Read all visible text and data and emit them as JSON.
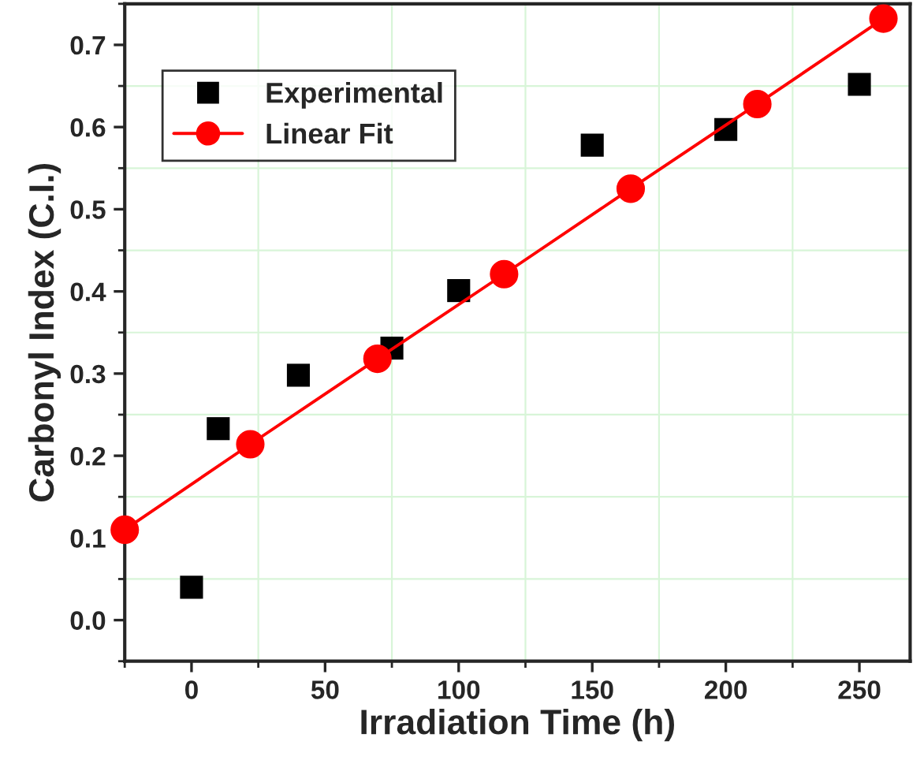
{
  "chart_data": {
    "type": "scatter",
    "xlabel": "Irradiation Time (h)",
    "ylabel": "Carbonyl Index (C.I.)",
    "xlim": [
      -25,
      269
    ],
    "ylim": [
      -0.05,
      0.75
    ],
    "xticks": [
      0,
      50,
      100,
      150,
      200,
      250
    ],
    "yticks": [
      {
        "value": 0,
        "label": "0.0"
      },
      0.1,
      0.2,
      0.3,
      0.4,
      0.5,
      0.6,
      0.7
    ],
    "grid": true,
    "legend": "top left",
    "series": [
      {
        "name": "Experimental",
        "marker": "square",
        "color": "#000000",
        "x": [
          0,
          10,
          40,
          75,
          100,
          150,
          200,
          250
        ],
        "values": [
          0.04,
          0.233,
          0.298,
          0.331,
          0.401,
          0.578,
          0.597,
          0.652
        ]
      },
      {
        "name": "Linear Fit",
        "type": "line",
        "marker": "circle",
        "color": "#ff0000",
        "x": [
          -25,
          22,
          69.6,
          117,
          164.4,
          211.8,
          259
        ],
        "values": [
          0.11,
          0.214,
          0.318,
          0.421,
          0.525,
          0.628,
          0.732
        ]
      }
    ]
  }
}
